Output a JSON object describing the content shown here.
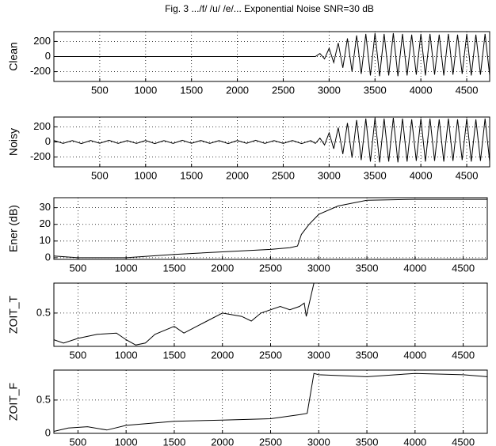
{
  "chart_data": [
    {
      "type": "line",
      "title": "Fig. 3 .../f/ /u/ /e/... Exponential Noise SNR=30 dB",
      "ylabel": "Clean",
      "color": "#000000",
      "grid": true,
      "xlim": [
        0,
        4750
      ],
      "ylim": [
        -330,
        330
      ],
      "xticks": [
        500,
        1000,
        1500,
        2000,
        2500,
        3000,
        3500,
        4000,
        4500
      ],
      "yticks": [
        -200,
        0,
        200
      ],
      "x": [
        0,
        2850,
        2900,
        2950,
        3000,
        3050,
        3100,
        3150,
        3200,
        3250,
        3300,
        3350,
        3400,
        3450,
        3500,
        3550,
        3600,
        3650,
        3700,
        3750,
        3800,
        3850,
        3900,
        3950,
        4000,
        4050,
        4100,
        4150,
        4200,
        4250,
        4300,
        4350,
        4400,
        4450,
        4500,
        4550,
        4600,
        4650,
        4700,
        4750
      ],
      "values": [
        0,
        0,
        40,
        -30,
        110,
        -80,
        180,
        -150,
        240,
        -200,
        280,
        -230,
        300,
        -250,
        310,
        -260,
        300,
        -250,
        310,
        -260,
        300,
        -250,
        290,
        -240,
        300,
        -250,
        300,
        -240,
        290,
        -250,
        300,
        -240,
        290,
        -230,
        300,
        -250,
        290,
        -240,
        300,
        -250
      ]
    },
    {
      "type": "line",
      "ylabel": "Noisy",
      "color": "#000000",
      "grid": true,
      "xlim": [
        0,
        4750
      ],
      "ylim": [
        -330,
        330
      ],
      "xticks": [
        500,
        1000,
        1500,
        2000,
        2500,
        3000,
        3500,
        4000,
        4500
      ],
      "yticks": [
        -200,
        0,
        200
      ],
      "x": [
        0,
        100,
        200,
        300,
        400,
        500,
        600,
        700,
        800,
        900,
        1000,
        1100,
        1200,
        1300,
        1400,
        1500,
        1600,
        1700,
        1800,
        1900,
        2000,
        2100,
        2200,
        2300,
        2400,
        2500,
        2600,
        2700,
        2800,
        2850,
        2900,
        2950,
        3000,
        3050,
        3100,
        3150,
        3200,
        3250,
        3300,
        3350,
        3400,
        3450,
        3500,
        3550,
        3600,
        3650,
        3700,
        3750,
        3800,
        3850,
        3900,
        3950,
        4000,
        4050,
        4100,
        4150,
        4200,
        4250,
        4300,
        4350,
        4400,
        4450,
        4500,
        4550,
        4600,
        4650,
        4700,
        4750
      ],
      "values": [
        20,
        -20,
        18,
        -22,
        20,
        -18,
        22,
        -20,
        18,
        -20,
        20,
        -22,
        18,
        -20,
        22,
        -18,
        20,
        -20,
        18,
        -22,
        20,
        -18,
        22,
        -20,
        18,
        -20,
        20,
        -22,
        18,
        -20,
        50,
        -40,
        120,
        -90,
        190,
        -160,
        250,
        -210,
        290,
        -240,
        310,
        -260,
        320,
        -270,
        310,
        -260,
        320,
        -270,
        310,
        -260,
        300,
        -250,
        310,
        -260,
        310,
        -250,
        300,
        -260,
        310,
        -250,
        300,
        -240,
        310,
        -260,
        300,
        -250,
        310,
        -260
      ]
    },
    {
      "type": "line",
      "ylabel": "Ener (dB)",
      "color": "#000000",
      "grid": true,
      "xlim": [
        250,
        4750
      ],
      "ylim": [
        -1,
        36
      ],
      "xticks": [
        500,
        1000,
        1500,
        2000,
        2500,
        3000,
        3500,
        4000,
        4500
      ],
      "yticks": [
        0,
        10,
        20,
        30
      ],
      "x": [
        250,
        500,
        1000,
        1500,
        2000,
        2500,
        2700,
        2780,
        2820,
        2900,
        3000,
        3200,
        3500,
        4000,
        4750
      ],
      "values": [
        1,
        0,
        0,
        2,
        3.5,
        5,
        6,
        7,
        14,
        20,
        26,
        31,
        34.5,
        35,
        35
      ]
    },
    {
      "type": "line",
      "ylabel": "ZOIT_T",
      "color": "#000000",
      "grid": true,
      "xlim": [
        250,
        4750
      ],
      "ylim": [
        0,
        0.95
      ],
      "xticks": [
        500,
        1000,
        1500,
        2000,
        2500,
        3000,
        3500,
        4000,
        4500
      ],
      "yticks": [
        0.5
      ],
      "x": [
        250,
        350,
        500,
        700,
        900,
        1000,
        1100,
        1200,
        1300,
        1500,
        1600,
        1800,
        2000,
        2200,
        2300,
        2400,
        2600,
        2700,
        2800,
        2850,
        2870,
        2950,
        4750
      ],
      "values": [
        0.1,
        0.05,
        0.12,
        0.18,
        0.2,
        0.1,
        0.02,
        0.05,
        0.18,
        0.3,
        0.2,
        0.35,
        0.5,
        0.45,
        0.38,
        0.5,
        0.6,
        0.55,
        0.6,
        0.65,
        0.45,
        0.95,
        0.95
      ]
    },
    {
      "type": "line",
      "ylabel": "ZOIT_F",
      "color": "#000000",
      "grid": true,
      "xlim": [
        250,
        4750
      ],
      "ylim": [
        0,
        0.95
      ],
      "xticks": [
        500,
        1000,
        1500,
        2000,
        2500,
        3000,
        3500,
        4000,
        4500
      ],
      "yticks": [
        0,
        0.5
      ],
      "x": [
        250,
        400,
        600,
        800,
        1000,
        1500,
        2000,
        2500,
        2800,
        2880,
        2950,
        3000,
        3500,
        4000,
        4500,
        4750
      ],
      "values": [
        0.03,
        0.08,
        0.1,
        0.05,
        0.12,
        0.18,
        0.2,
        0.22,
        0.28,
        0.3,
        0.9,
        0.88,
        0.85,
        0.9,
        0.88,
        0.85
      ]
    }
  ]
}
